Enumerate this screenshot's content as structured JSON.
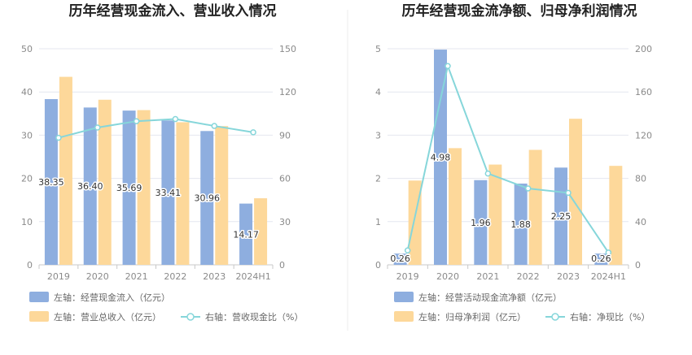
{
  "colors": {
    "bar_left": "#8eaedf",
    "bar_right": "#fdd89a",
    "line": "#86d6da",
    "grid": "#e4e7ef",
    "axis": "#c8c8c8",
    "divider": "#eeeeee"
  },
  "chart_data": [
    {
      "type": "bar",
      "title": "历年经营现金流入、营业收入情况",
      "categories": [
        "2019",
        "2020",
        "2021",
        "2022",
        "2023",
        "2024H1"
      ],
      "ylim_left": [
        0,
        50
      ],
      "yticks_left": [
        0,
        10,
        20,
        30,
        40,
        50
      ],
      "ylim_right": [
        0,
        150
      ],
      "yticks_right": [
        0,
        30,
        60,
        90,
        120,
        150
      ],
      "grid": true,
      "legend_position": "bottom-left",
      "series": [
        {
          "name": "左轴：经营现金流入（亿元）",
          "kind": "bar",
          "axis": "left",
          "values": [
            38.35,
            36.4,
            35.69,
            33.41,
            30.96,
            14.17
          ],
          "labels": [
            "38.35",
            "36.40",
            "35.69",
            "33.41",
            "30.96",
            "14.17"
          ]
        },
        {
          "name": "左轴：营业总收入（亿元）",
          "kind": "bar",
          "axis": "left",
          "values": [
            43.5,
            38.2,
            35.8,
            33.0,
            32.1,
            15.4
          ]
        },
        {
          "name": "右轴：营收现金比（%）",
          "kind": "line",
          "axis": "right",
          "values": [
            88.2,
            95.3,
            99.7,
            101.2,
            96.4,
            92.0
          ]
        }
      ]
    },
    {
      "type": "bar",
      "title": "历年经营现金流净额、归母净利润情况",
      "categories": [
        "2019",
        "2020",
        "2021",
        "2022",
        "2023",
        "2024H1"
      ],
      "ylim_left": [
        0,
        5
      ],
      "yticks_left": [
        0,
        1,
        2,
        3,
        4,
        5
      ],
      "ylim_right": [
        0,
        200
      ],
      "yticks_right": [
        0,
        40,
        80,
        120,
        160,
        200
      ],
      "grid": true,
      "legend_position": "bottom-left",
      "series": [
        {
          "name": "左轴：经营活动现金流净额（亿元）",
          "kind": "bar",
          "axis": "left",
          "values": [
            0.26,
            4.98,
            1.96,
            1.88,
            2.25,
            0.26
          ],
          "labels": [
            "0.26",
            "4.98",
            "1.96",
            "1.88",
            "2.25",
            "0.26"
          ]
        },
        {
          "name": "左轴：归母净利润（亿元）",
          "kind": "bar",
          "axis": "left",
          "values": [
            1.95,
            2.7,
            2.32,
            2.66,
            3.38,
            2.29
          ]
        },
        {
          "name": "右轴：净现比（%）",
          "kind": "line",
          "axis": "right",
          "values": [
            13.3,
            184.0,
            84.5,
            70.7,
            66.6,
            11.4
          ]
        }
      ]
    }
  ]
}
